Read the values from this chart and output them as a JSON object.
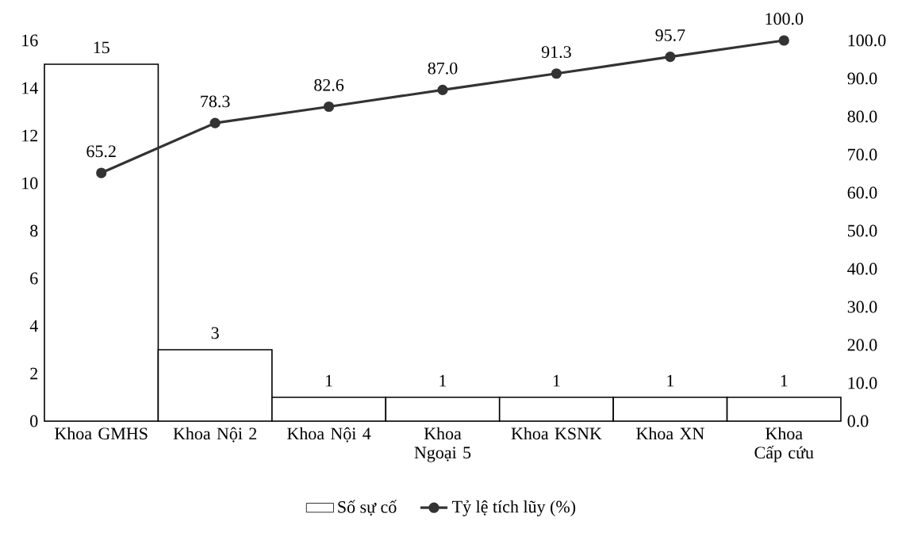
{
  "chart_data": {
    "type": "bar",
    "categories": [
      "Khoa GMHS",
      "Khoa Nội 2",
      "Khoa Nội 4",
      "Khoa Ngoại 5",
      "Khoa KSNK",
      "Khoa XN",
      "Khoa Cấp cứu"
    ],
    "series": [
      {
        "name": "Số sự cố",
        "color": "#ffffff",
        "values": [
          15,
          3,
          1,
          1,
          1,
          1,
          1
        ],
        "value_labels": [
          "15",
          "3",
          "1",
          "1",
          "1",
          "1",
          "1"
        ]
      },
      {
        "name": "Tỷ lệ tích lũy (%)",
        "type": "line",
        "axis": "y2",
        "color": "#333333",
        "values": [
          65.2,
          78.3,
          82.6,
          87.0,
          91.3,
          95.7,
          100.0
        ],
        "value_labels": [
          "65.2",
          "78.3",
          "82.6",
          "87.0",
          "91.3",
          "95.7",
          "100.0"
        ]
      }
    ],
    "ylim": [
      0,
      16
    ],
    "yticks": [
      0,
      2,
      4,
      6,
      8,
      10,
      12,
      14,
      16
    ],
    "y2lim": [
      0,
      100
    ],
    "y2ticks": [
      {
        "value": 0,
        "label": "0.0"
      },
      {
        "value": 10,
        "label": "10.0"
      },
      {
        "value": 20,
        "label": "20.0"
      },
      {
        "value": 30,
        "label": "30.0"
      },
      {
        "value": 40,
        "label": "40.0"
      },
      {
        "value": 50,
        "label": "50.0"
      },
      {
        "value": 60,
        "label": "60.0"
      },
      {
        "value": 70,
        "label": "70.0"
      },
      {
        "value": 80,
        "label": "80.0"
      },
      {
        "value": 90,
        "label": "90.0"
      },
      {
        "value": 100,
        "label": "100.0"
      }
    ],
    "marker": "circle",
    "legend": "bottom"
  }
}
